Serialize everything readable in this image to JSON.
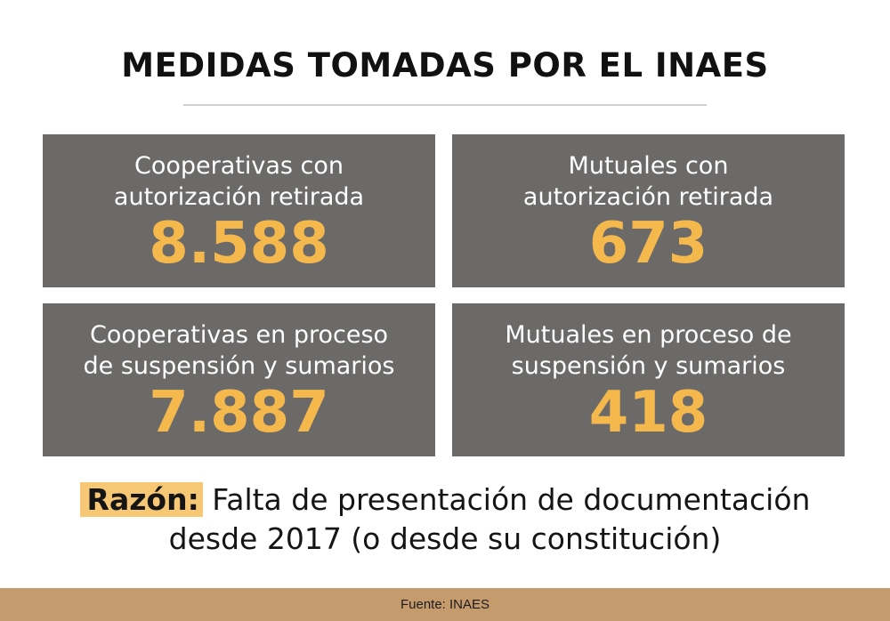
{
  "title": "MEDIDAS TOMADAS POR EL INAES",
  "cards": [
    {
      "label_line1": "Cooperativas con",
      "label_line2": "autorización retirada",
      "value": "8.588"
    },
    {
      "label_line1": "Mutuales con",
      "label_line2": "autorización retirada",
      "value": "673"
    },
    {
      "label_line1": "Cooperativas en proceso",
      "label_line2": "de suspensión y sumarios",
      "value": "7.887"
    },
    {
      "label_line1": "Mutuales en proceso de",
      "label_line2": "suspensión y sumarios",
      "value": "418"
    }
  ],
  "reason": {
    "tag": "Razón:",
    "line1": " Falta de presentación de documentación",
    "line2": "desde 2017 (o desde su constitución)"
  },
  "footer": {
    "source": "Fuente: INAES"
  },
  "colors": {
    "card_bg": "#6b6a69",
    "value": "#f5b84c",
    "tag_bg": "#f6c774",
    "footer_bg": "#c59b6d"
  }
}
